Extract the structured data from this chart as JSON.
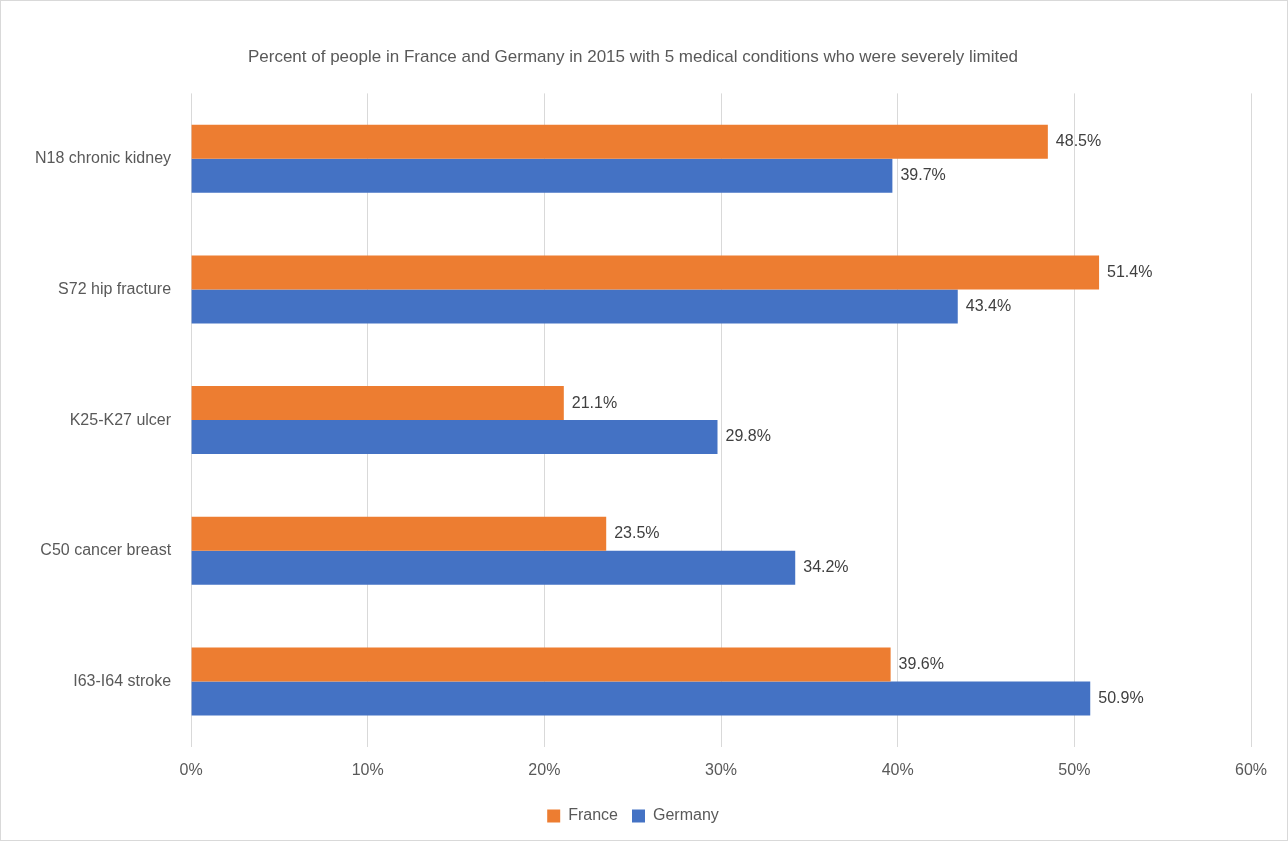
{
  "chart_data": {
    "type": "bar",
    "orientation": "horizontal",
    "title": "Percent of people in France and Germany in 2015 with 5 medical conditions who were severely limited",
    "categories": [
      "N18 chronic kidney",
      "S72 hip fracture",
      "K25-K27 ulcer",
      "C50 cancer breast",
      "I63-I64 stroke"
    ],
    "series": [
      {
        "name": "France",
        "color": "#ed7d31",
        "values": [
          48.5,
          51.4,
          21.1,
          23.5,
          39.6
        ],
        "value_labels": [
          "48.5%",
          "51.4%",
          "21.1%",
          "23.5%",
          "39.6%"
        ]
      },
      {
        "name": "Germany",
        "color": "#4472c4",
        "values": [
          39.7,
          43.4,
          29.8,
          34.2,
          50.9
        ],
        "value_labels": [
          "39.7%",
          "43.4%",
          "29.8%",
          "34.2%",
          "50.9%"
        ]
      }
    ],
    "xlim": [
      0,
      60
    ],
    "xticks": [
      {
        "value": 0,
        "label": "0%"
      },
      {
        "value": 10,
        "label": "10%"
      },
      {
        "value": 20,
        "label": "20%"
      },
      {
        "value": 30,
        "label": "30%"
      },
      {
        "value": 40,
        "label": "40%"
      },
      {
        "value": 50,
        "label": "50%"
      },
      {
        "value": 60,
        "label": "60%"
      }
    ],
    "grid": "x",
    "legend": "bottom"
  }
}
